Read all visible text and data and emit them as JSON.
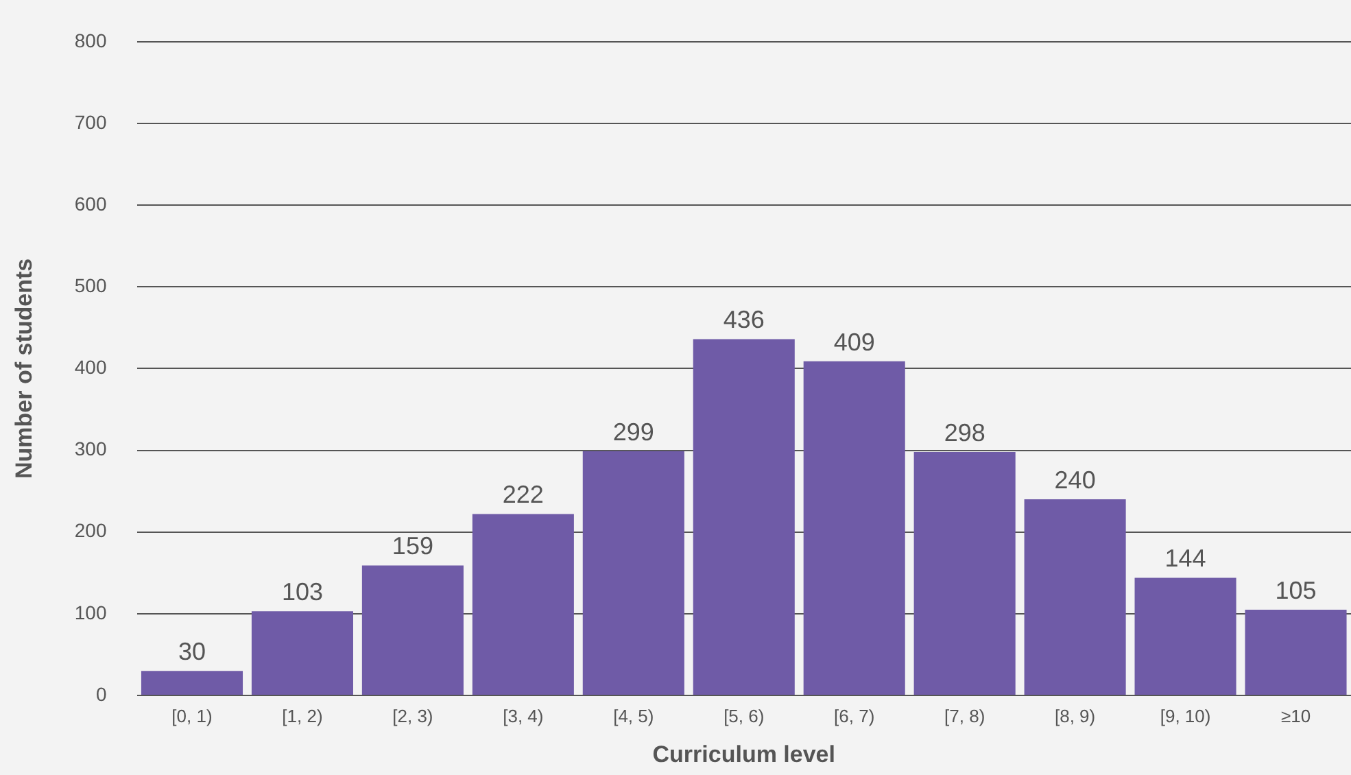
{
  "chart_data": {
    "type": "bar",
    "xlabel": "Curriculum level",
    "ylabel": "Number of students",
    "categories": [
      "[0, 1)",
      "[1, 2)",
      "[2, 3)",
      "[3, 4)",
      "[4, 5)",
      "[5, 6)",
      "[6, 7)",
      "[7, 8)",
      "[8, 9)",
      "[9, 10)",
      "≥10"
    ],
    "values": [
      30,
      103,
      159,
      222,
      299,
      436,
      409,
      298,
      240,
      144,
      105
    ],
    "color": "#6f5ba7",
    "ylim": [
      0,
      800
    ],
    "yticks": [
      0,
      100,
      200,
      300,
      400,
      500,
      600,
      700,
      800
    ],
    "grid": "y",
    "data_labels": true,
    "legend": false
  }
}
